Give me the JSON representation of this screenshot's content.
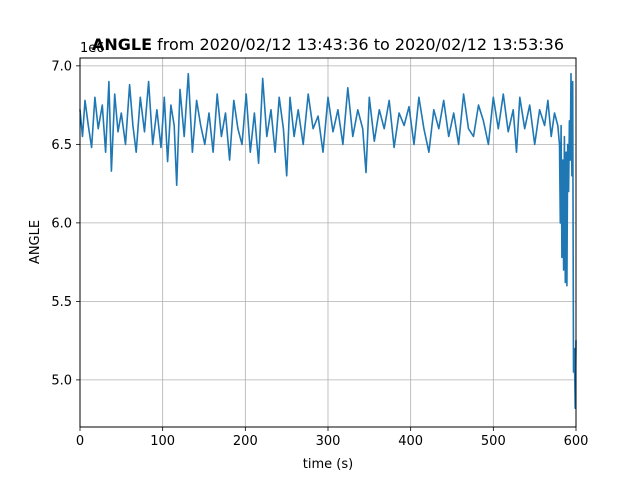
{
  "chart_data": {
    "type": "line",
    "title_bold": "ANGLE",
    "title_rest": " from 2020/02/12 13:43:36 to 2020/02/12 13:53:36",
    "xlabel": "time (s)",
    "ylabel": "ANGLE",
    "offset_label": "1e6",
    "xlim": [
      0,
      600
    ],
    "ylim": [
      4.7,
      7.05
    ],
    "xticks": [
      0,
      100,
      200,
      300,
      400,
      500,
      600
    ],
    "yticks": [
      5.0,
      5.5,
      6.0,
      6.5,
      7.0
    ],
    "ytick_labels": [
      "5.0",
      "5.5",
      "6.0",
      "6.5",
      "7.0"
    ],
    "grid": true,
    "series": [
      {
        "color": "#1f77b4",
        "x": [
          0,
          3,
          6,
          10,
          14,
          18,
          22,
          27,
          31,
          35,
          38,
          42,
          46,
          50,
          55,
          60,
          64,
          68,
          73,
          78,
          83,
          88,
          93,
          98,
          102,
          106,
          110,
          114,
          117,
          121,
          126,
          131,
          136,
          141,
          146,
          151,
          156,
          161,
          166,
          171,
          176,
          181,
          186,
          191,
          196,
          201,
          206,
          211,
          216,
          221,
          226,
          231,
          236,
          241,
          246,
          250,
          254,
          259,
          264,
          270,
          276,
          282,
          288,
          294,
          300,
          306,
          312,
          318,
          324,
          330,
          336,
          342,
          346,
          350,
          356,
          362,
          368,
          374,
          380,
          386,
          392,
          398,
          404,
          410,
          416,
          422,
          428,
          434,
          440,
          446,
          452,
          458,
          464,
          470,
          476,
          482,
          488,
          494,
          500,
          506,
          512,
          518,
          524,
          528,
          532,
          538,
          544,
          550,
          556,
          562,
          566,
          570,
          574,
          578,
          580,
          581,
          582,
          583,
          584,
          585,
          586,
          587,
          588,
          589,
          590,
          591,
          592,
          593,
          594,
          595,
          596,
          597,
          598,
          599,
          600
        ],
        "y": [
          6.72,
          6.55,
          6.78,
          6.62,
          6.48,
          6.8,
          6.6,
          6.75,
          6.45,
          6.9,
          6.33,
          6.82,
          6.58,
          6.7,
          6.5,
          6.88,
          6.62,
          6.45,
          6.8,
          6.58,
          6.9,
          6.5,
          6.72,
          6.48,
          6.8,
          6.39,
          6.75,
          6.62,
          6.24,
          6.85,
          6.55,
          6.95,
          6.45,
          6.78,
          6.62,
          6.5,
          6.7,
          6.45,
          6.82,
          6.55,
          6.7,
          6.4,
          6.78,
          6.6,
          6.5,
          6.82,
          6.45,
          6.7,
          6.38,
          6.92,
          6.55,
          6.72,
          6.45,
          6.8,
          6.6,
          6.3,
          6.8,
          6.55,
          6.72,
          6.5,
          6.82,
          6.6,
          6.68,
          6.45,
          6.8,
          6.58,
          6.72,
          6.5,
          6.86,
          6.55,
          6.72,
          6.6,
          6.32,
          6.8,
          6.52,
          6.72,
          6.6,
          6.78,
          6.48,
          6.7,
          6.62,
          6.74,
          6.5,
          6.8,
          6.6,
          6.45,
          6.72,
          6.6,
          6.78,
          6.55,
          6.7,
          6.5,
          6.82,
          6.6,
          6.55,
          6.75,
          6.65,
          6.5,
          6.8,
          6.6,
          6.82,
          6.58,
          6.72,
          6.45,
          6.8,
          6.6,
          6.75,
          6.5,
          6.72,
          6.62,
          6.78,
          6.55,
          6.7,
          6.62,
          6.5,
          6.0,
          6.62,
          5.78,
          6.4,
          5.7,
          6.55,
          5.62,
          6.45,
          5.6,
          6.5,
          6.2,
          6.65,
          6.4,
          6.95,
          6.3,
          6.9,
          5.05,
          5.2,
          4.82,
          5.25
        ]
      }
    ]
  }
}
